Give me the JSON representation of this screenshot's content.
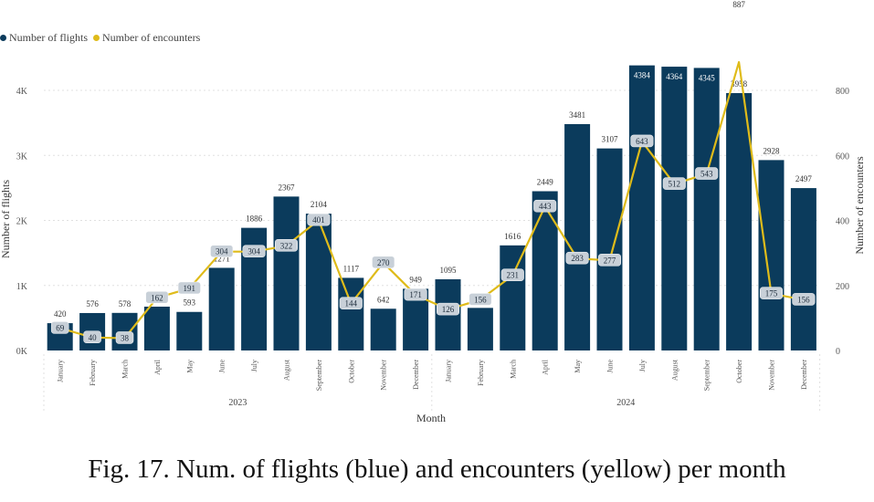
{
  "caption": "Fig. 17. Num. of flights (blue) and encounters (yellow) per month",
  "colors": {
    "bar": "#0b3b5c",
    "line": "#dfbb1a",
    "pill": "#c8d0d8",
    "grid": "#e0e0e0"
  },
  "chart_data": {
    "type": "bar",
    "legend_position": "top-left",
    "grid": true,
    "xlabel": "Month",
    "ylabel": "Number of flights",
    "y2label": "Number of encounters",
    "ylim": [
      0,
      4400
    ],
    "y2lim": [
      0,
      880
    ],
    "yticks": [
      "0K",
      "1K",
      "2K",
      "3K",
      "4K"
    ],
    "ytick_values": [
      0,
      1000,
      2000,
      3000,
      4000
    ],
    "y2ticks": [
      "0",
      "200",
      "400",
      "600",
      "800"
    ],
    "y2tick_values": [
      0,
      200,
      400,
      600,
      800
    ],
    "groups": [
      {
        "label": "2023",
        "count": 12
      },
      {
        "label": "2024",
        "count": 12
      }
    ],
    "categories": [
      "January",
      "February",
      "March",
      "April",
      "May",
      "June",
      "July",
      "August",
      "September",
      "October",
      "November",
      "December",
      "January",
      "February",
      "March",
      "April",
      "May",
      "June",
      "July",
      "August",
      "September",
      "October",
      "November",
      "December"
    ],
    "series": [
      {
        "name": "Number of flights",
        "type": "bar",
        "values": [
          420,
          576,
          578,
          674,
          593,
          1271,
          1886,
          2367,
          2104,
          1117,
          642,
          949,
          1095,
          655,
          1616,
          2449,
          3481,
          3107,
          4384,
          4364,
          4345,
          3958,
          2928,
          2497
        ]
      },
      {
        "name": "Number of encounters",
        "type": "line",
        "values": [
          69,
          40,
          38,
          162,
          191,
          304,
          304,
          322,
          401,
          144,
          270,
          171,
          126,
          156,
          231,
          443,
          283,
          277,
          643,
          512,
          543,
          887,
          175,
          156
        ]
      }
    ]
  }
}
